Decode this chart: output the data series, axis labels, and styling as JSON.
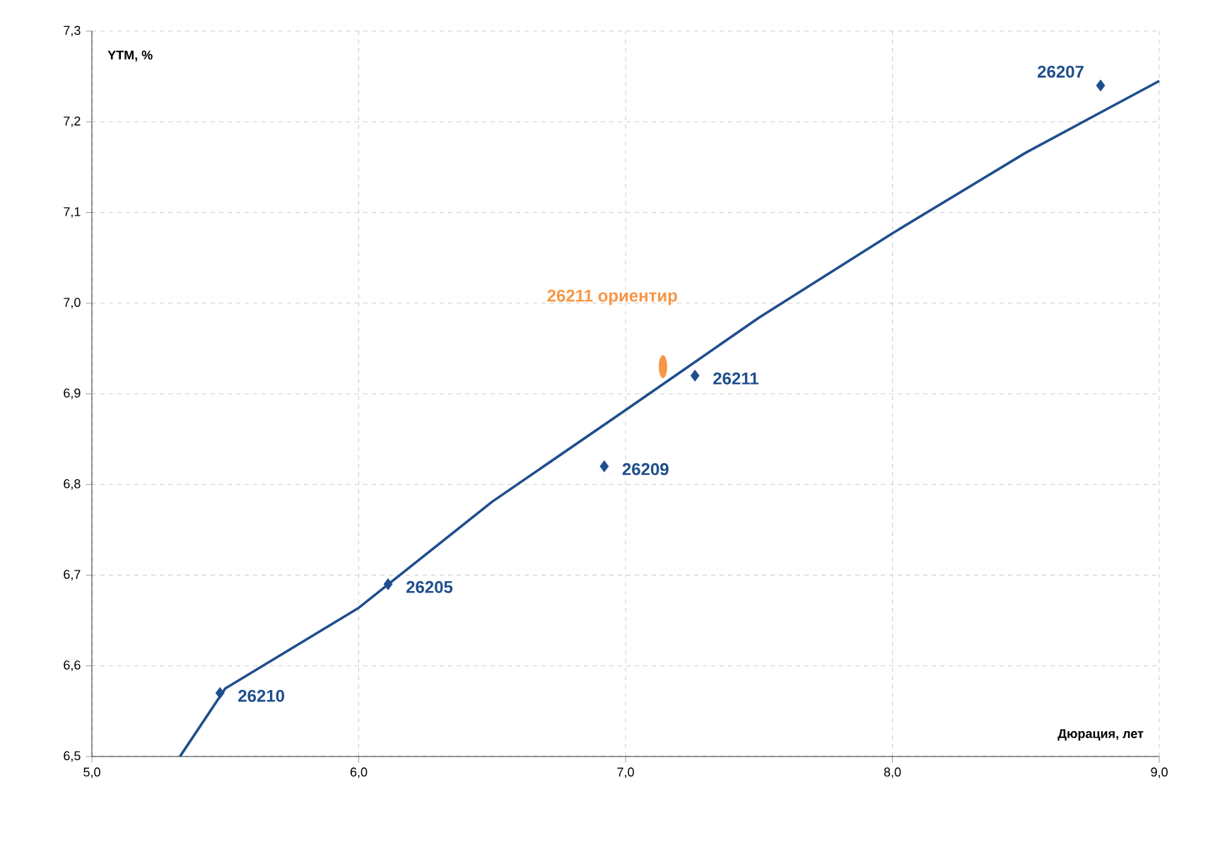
{
  "chart_data": {
    "type": "scatter",
    "xlabel": "Дюрация, лет",
    "ylabel": "YTM, %",
    "xlim": [
      5.0,
      9.0
    ],
    "ylim": [
      6.5,
      7.3
    ],
    "xticks": [
      {
        "value": 5.0,
        "label": "5,0"
      },
      {
        "value": 6.0,
        "label": "6,0"
      },
      {
        "value": 7.0,
        "label": "7,0"
      },
      {
        "value": 8.0,
        "label": "8,0"
      },
      {
        "value": 9.0,
        "label": "9,0"
      }
    ],
    "yticks": [
      {
        "value": 6.5,
        "label": "6,5"
      },
      {
        "value": 6.6,
        "label": "6,6"
      },
      {
        "value": 6.7,
        "label": "6,7"
      },
      {
        "value": 6.8,
        "label": "6,8"
      },
      {
        "value": 6.9,
        "label": "6,9"
      },
      {
        "value": 7.0,
        "label": "7,0"
      },
      {
        "value": 7.1,
        "label": "7,1"
      },
      {
        "value": 7.2,
        "label": "7,2"
      },
      {
        "value": 7.3,
        "label": "7,3"
      }
    ],
    "grid": true,
    "series": [
      {
        "type": "line",
        "color": "#1f4e8c",
        "marker": "none",
        "x": [
          5.33,
          5.5,
          6.0,
          6.5,
          7.0,
          7.5,
          8.0,
          8.5,
          9.0
        ],
        "values": [
          6.5,
          6.575,
          6.664,
          6.781,
          6.882,
          6.984,
          7.077,
          7.166,
          7.245
        ]
      },
      {
        "name": "26210",
        "color": "#1f4e8c",
        "marker": "diamond",
        "x": [
          5.48
        ],
        "values": [
          6.57
        ]
      },
      {
        "name": "26205",
        "color": "#1f4e8c",
        "marker": "diamond",
        "x": [
          6.11
        ],
        "values": [
          6.69
        ]
      },
      {
        "name": "26209",
        "color": "#1f4e8c",
        "marker": "diamond",
        "x": [
          6.92
        ],
        "values": [
          6.82
        ]
      },
      {
        "name": "26211",
        "color": "#1f4e8c",
        "marker": "diamond",
        "x": [
          7.26
        ],
        "values": [
          6.92
        ]
      },
      {
        "name": "26207",
        "color": "#1f4e8c",
        "marker": "diamond",
        "x": [
          8.78
        ],
        "values": [
          7.24
        ]
      },
      {
        "name": "26211 ориентир",
        "color": "#f79646",
        "marker": "circle",
        "x": [
          7.14
        ],
        "values": [
          6.93
        ]
      }
    ]
  }
}
